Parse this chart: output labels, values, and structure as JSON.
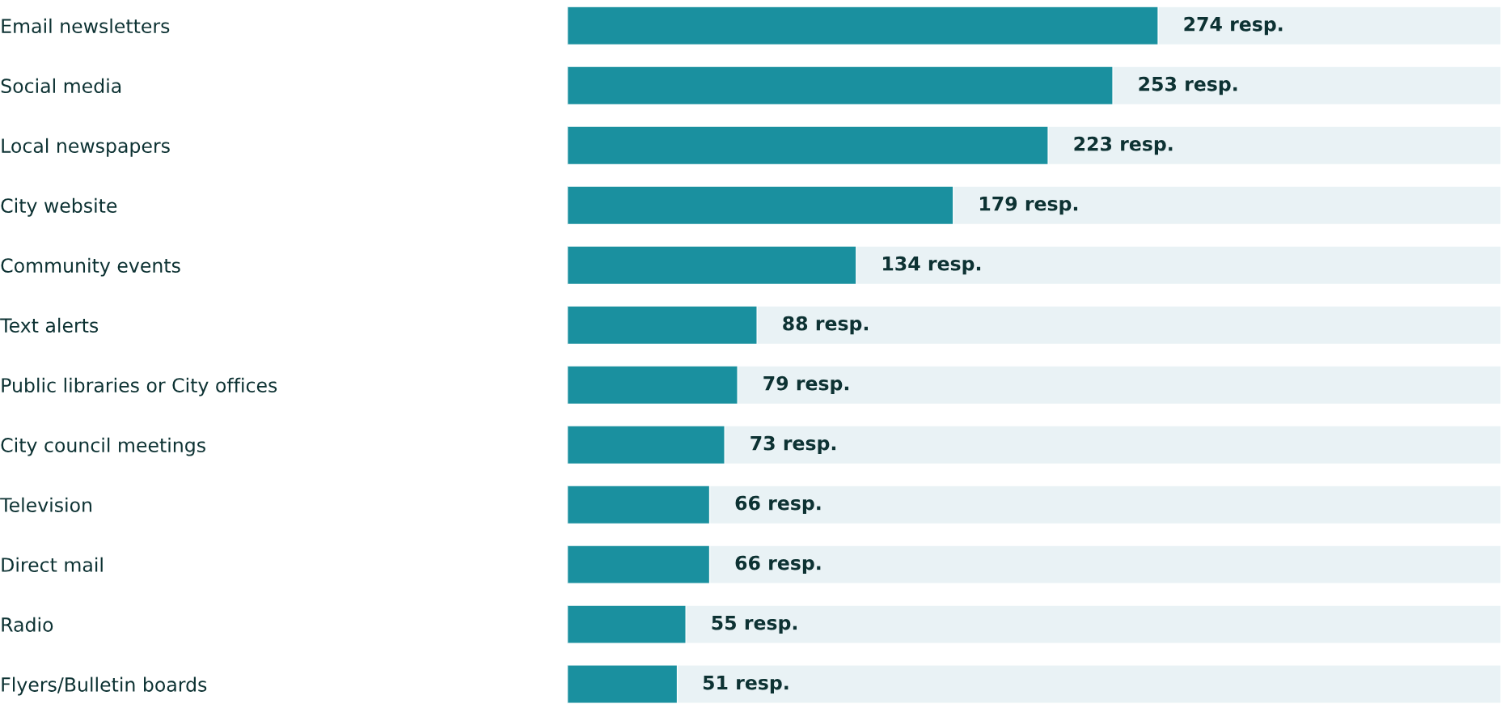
{
  "chart_data": {
    "type": "bar",
    "orientation": "horizontal",
    "categories": [
      "Email newsletters",
      "Social media",
      "Local newspapers",
      "City website",
      "Community events",
      "Text alerts",
      "Public libraries or City offices",
      "City council meetings",
      "Television",
      "Direct mail",
      "Radio",
      "Flyers/Bulletin boards"
    ],
    "values": [
      274,
      253,
      223,
      179,
      134,
      88,
      79,
      73,
      66,
      66,
      55,
      51
    ],
    "value_labels": [
      "274 resp.",
      "253 resp.",
      "223 resp.",
      "179 resp.",
      "134 resp.",
      "88 resp.",
      "79 resp.",
      "73 resp.",
      "66 resp.",
      "66 resp.",
      "55 resp.",
      "51 resp."
    ],
    "color": "#1a909f",
    "xlim": [
      0,
      433
    ],
    "grid": false,
    "legend": false
  }
}
